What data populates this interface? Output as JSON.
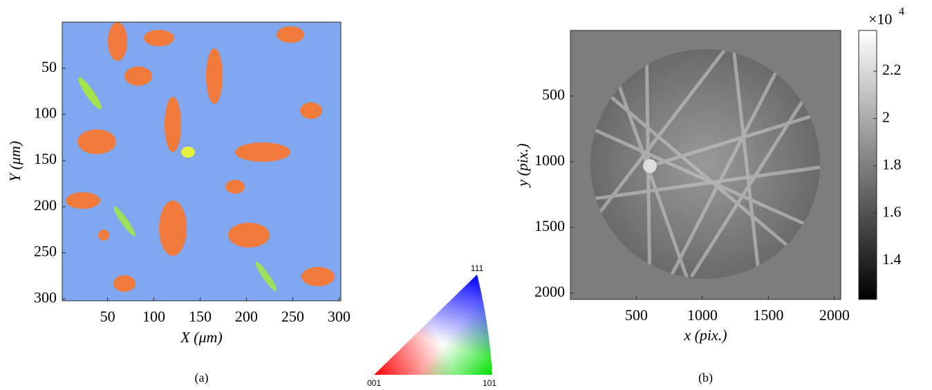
{
  "panels": [
    {
      "caption": "(a)",
      "xlabel": "X (μm)",
      "ylabel": "Y (μm)",
      "xlim": [
        1,
        302
      ],
      "ylim": [
        0,
        302
      ],
      "xticks": [
        50,
        100,
        150,
        200,
        250,
        300
      ],
      "yticks": [
        50,
        100,
        150,
        200,
        250,
        300
      ]
    },
    {
      "caption": "(b)",
      "xlabel": "x (pix.)",
      "ylabel": "y (pix.)",
      "xlim": [
        1,
        2048
      ],
      "ylim": [
        1,
        2048
      ],
      "xticks": [
        500,
        1000,
        1500,
        2000
      ],
      "yticks": [
        500,
        1000,
        1500,
        2000
      ],
      "colorbar": {
        "lim": [
          1.236,
          2.372
        ],
        "ticks": [
          1.4,
          1.6,
          1.8,
          2,
          2.2
        ],
        "multiplier": "×10",
        "exponent": "4"
      }
    }
  ],
  "ipf": {
    "top": "111",
    "left": "001",
    "right": "101"
  }
}
